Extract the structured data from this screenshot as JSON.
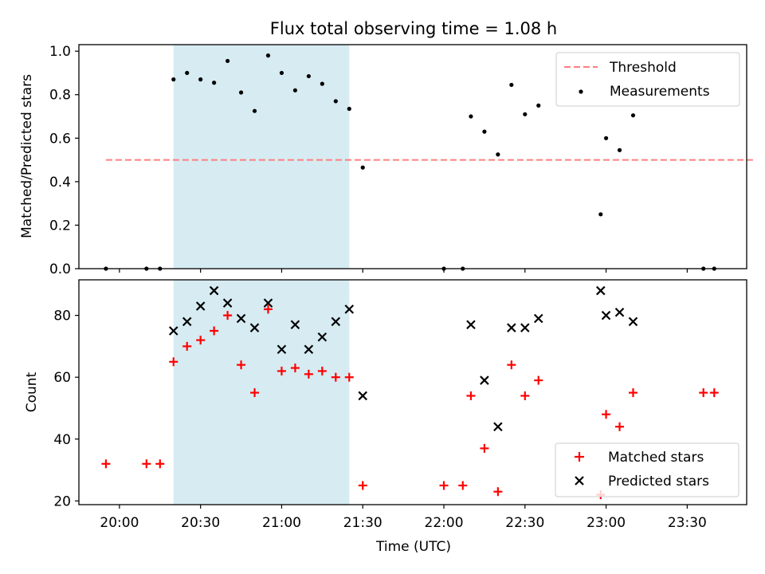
{
  "figure": {
    "title": "Flux total observing time = 1.08 h",
    "xlabel": "Time (UTC)"
  },
  "colors": {
    "threshold": "#ff7f7f",
    "measurement": "#000000",
    "matched": "#ff0000",
    "predicted": "#000000",
    "shade": "#add8e6"
  },
  "chart_data": [
    {
      "type": "scatter",
      "ylabel": "Matched/Predicted stars",
      "xlim": [
        "19:45",
        "23:52"
      ],
      "ylim": [
        0,
        1.03
      ],
      "yticks": [
        0.0,
        0.2,
        0.4,
        0.6,
        0.8,
        1.0
      ],
      "ytick_labels": [
        "0.0",
        "0.2",
        "0.4",
        "0.6",
        "0.8",
        "1.0"
      ],
      "grid": false,
      "legend": "top-right",
      "shaded_span": [
        "20:20",
        "21:25"
      ],
      "threshold": {
        "name": "Threshold",
        "value": 0.5,
        "x": [
          "19:55",
          "23:55"
        ]
      },
      "series": [
        {
          "name": "Measurements",
          "points": [
            [
              "19:55",
              0.0
            ],
            [
              "20:10",
              0.0
            ],
            [
              "20:15",
              0.0
            ],
            [
              "20:20",
              0.87
            ],
            [
              "20:25",
              0.9
            ],
            [
              "20:30",
              0.87
            ],
            [
              "20:35",
              0.855
            ],
            [
              "20:40",
              0.955
            ],
            [
              "20:45",
              0.81
            ],
            [
              "20:50",
              0.725
            ],
            [
              "20:55",
              0.98
            ],
            [
              "21:00",
              0.9
            ],
            [
              "21:05",
              0.82
            ],
            [
              "21:10",
              0.885
            ],
            [
              "21:15",
              0.85
            ],
            [
              "21:20",
              0.77
            ],
            [
              "21:25",
              0.735
            ],
            [
              "21:30",
              0.465
            ],
            [
              "22:00",
              0.0
            ],
            [
              "22:07",
              0.0
            ],
            [
              "22:10",
              0.7
            ],
            [
              "22:15",
              0.63
            ],
            [
              "22:20",
              0.525
            ],
            [
              "22:25",
              0.845
            ],
            [
              "22:30",
              0.71
            ],
            [
              "22:35",
              0.75
            ],
            [
              "22:58",
              0.25
            ],
            [
              "23:00",
              0.6
            ],
            [
              "23:05",
              0.545
            ],
            [
              "23:10",
              0.705
            ],
            [
              "23:36",
              0.0
            ],
            [
              "23:40",
              0.0
            ]
          ]
        }
      ]
    },
    {
      "type": "scatter",
      "ylabel": "Count",
      "xlim": [
        "19:45",
        "23:52"
      ],
      "ylim": [
        18.8,
        91.5
      ],
      "yticks": [
        20,
        40,
        60,
        80
      ],
      "ytick_labels": [
        "20",
        "40",
        "60",
        "80"
      ],
      "xticks": [
        "20:00",
        "20:30",
        "21:00",
        "21:30",
        "22:00",
        "22:30",
        "23:00",
        "23:30"
      ],
      "grid": false,
      "legend": "bottom-right",
      "shaded_span": [
        "20:20",
        "21:25"
      ],
      "series": [
        {
          "name": "Matched stars",
          "marker": "plus",
          "points": [
            [
              "19:55",
              32
            ],
            [
              "20:10",
              32
            ],
            [
              "20:15",
              32
            ],
            [
              "20:20",
              65
            ],
            [
              "20:25",
              70
            ],
            [
              "20:30",
              72
            ],
            [
              "20:35",
              75
            ],
            [
              "20:40",
              80
            ],
            [
              "20:45",
              64
            ],
            [
              "20:50",
              55
            ],
            [
              "20:55",
              82
            ],
            [
              "21:00",
              62
            ],
            [
              "21:05",
              63
            ],
            [
              "21:10",
              61
            ],
            [
              "21:15",
              62
            ],
            [
              "21:20",
              60
            ],
            [
              "21:25",
              60
            ],
            [
              "21:30",
              25
            ],
            [
              "22:00",
              25
            ],
            [
              "22:07",
              25
            ],
            [
              "22:10",
              54
            ],
            [
              "22:15",
              37
            ],
            [
              "22:20",
              23
            ],
            [
              "22:25",
              64
            ],
            [
              "22:30",
              54
            ],
            [
              "22:35",
              59
            ],
            [
              "22:58",
              22
            ],
            [
              "23:00",
              48
            ],
            [
              "23:05",
              44
            ],
            [
              "23:10",
              55
            ],
            [
              "23:36",
              55
            ],
            [
              "23:40",
              55
            ]
          ]
        },
        {
          "name": "Predicted stars",
          "marker": "x",
          "points": [
            [
              "20:20",
              75
            ],
            [
              "20:25",
              78
            ],
            [
              "20:30",
              83
            ],
            [
              "20:35",
              88
            ],
            [
              "20:40",
              84
            ],
            [
              "20:45",
              79
            ],
            [
              "20:50",
              76
            ],
            [
              "20:55",
              84
            ],
            [
              "21:00",
              69
            ],
            [
              "21:05",
              77
            ],
            [
              "21:10",
              69
            ],
            [
              "21:15",
              73
            ],
            [
              "21:20",
              78
            ],
            [
              "21:25",
              82
            ],
            [
              "21:30",
              54
            ],
            [
              "22:10",
              77
            ],
            [
              "22:15",
              59
            ],
            [
              "22:20",
              44
            ],
            [
              "22:25",
              76
            ],
            [
              "22:30",
              76
            ],
            [
              "22:35",
              79
            ],
            [
              "22:58",
              88
            ],
            [
              "23:00",
              80
            ],
            [
              "23:05",
              81
            ],
            [
              "23:10",
              78
            ]
          ]
        }
      ]
    }
  ]
}
